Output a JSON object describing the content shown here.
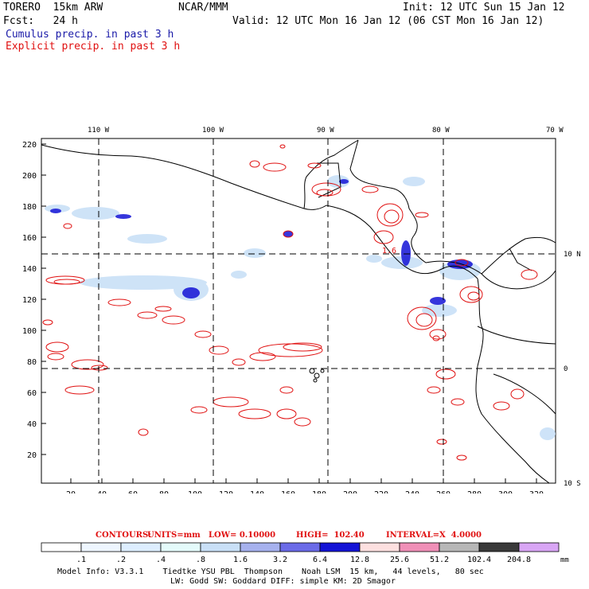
{
  "header": {
    "model": "TORERO  15km ARW",
    "org": "NCAR/MMM",
    "init": "Init: 12 UTC Sun 15 Jan 12",
    "fcst": "Fcst:   24 h",
    "valid": "Valid: 12 UTC Mon 16 Jan 12 (06 CST Mon 16 Jan 12)",
    "cumulus": "Cumulus precip. in past 3 h",
    "explicit": "Explicit precip. in past 3 h"
  },
  "colors": {
    "cumulus_text": "#1a1aa8",
    "explicit_text": "#e01010",
    "contour": "#e01010",
    "coast": "#000000"
  },
  "map": {
    "lon_labels": [
      "110 W",
      "100 W",
      "90 W",
      "80 W",
      "70 W"
    ],
    "lat_labels": [
      "10 N",
      "0",
      "10 S"
    ],
    "y_ticks": [
      "220",
      "200",
      "180",
      "160",
      "140",
      "120",
      "100",
      "80",
      "60",
      "40",
      "20"
    ],
    "x_ticks": [
      "20",
      "40",
      "60",
      "80",
      "100",
      "120",
      "140",
      "160",
      "180",
      "200",
      "220",
      "240",
      "260",
      "280",
      "300",
      "320"
    ],
    "contour_label": "1.6"
  },
  "contours_info": {
    "label": "CONTOURS:",
    "units": "UNITS=mm",
    "low": "LOW= 0.10000",
    "high": "HIGH=  102.40",
    "interval": "INTERVAL=X  4.0000"
  },
  "colorbar": {
    "labels": [
      ".1",
      ".2",
      ".4",
      ".8",
      "1.6",
      "3.2",
      "6.4",
      "12.8",
      "25.6",
      "51.2",
      "102.4",
      "204.8"
    ],
    "unit": "mm",
    "bins": [
      "#ffffff",
      "#eef6ff",
      "#ddeeff",
      "#e4fbfb",
      "#c9e0f7",
      "#a7b2ee",
      "#6b6be8",
      "#1414d6",
      "#fde0e0",
      "#f090b8",
      "#b8b8b8",
      "#3a3a3a",
      "#d9a6f5"
    ]
  },
  "footer": {
    "line1": "Model Info: V3.3.1    Tiedtke YSU PBL  Thompson    Noah LSM  15 km,   44 levels,   80 sec",
    "line2": "LW: Godd SW: Goddard DIFF: simple KM: 2D Smagor"
  }
}
